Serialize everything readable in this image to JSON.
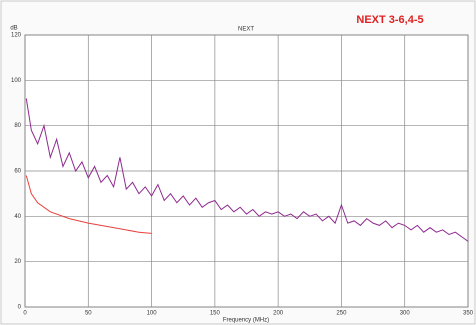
{
  "chart_data": {
    "type": "line",
    "title": "NEXT",
    "annotation": "NEXT 3-6,4-5",
    "ylabel": "dB",
    "xlabel": "Frequency (MHz)",
    "xlim": [
      0,
      350
    ],
    "ylim": [
      0,
      120
    ],
    "xticks": [
      0,
      50,
      100,
      150,
      200,
      250,
      300,
      350
    ],
    "yticks": [
      0,
      20,
      40,
      60,
      80,
      100,
      120
    ],
    "grid": true,
    "series": [
      {
        "color": "#8e2a8e",
        "x": [
          1,
          5,
          10,
          15,
          20,
          25,
          30,
          35,
          40,
          45,
          50,
          55,
          60,
          65,
          70,
          75,
          80,
          85,
          90,
          95,
          100,
          105,
          110,
          115,
          120,
          125,
          130,
          135,
          140,
          145,
          150,
          155,
          160,
          165,
          170,
          175,
          180,
          185,
          190,
          195,
          200,
          205,
          210,
          215,
          220,
          225,
          230,
          235,
          240,
          245,
          250,
          255,
          260,
          265,
          270,
          275,
          280,
          285,
          290,
          295,
          300,
          305,
          310,
          315,
          320,
          325,
          330,
          335,
          340,
          345,
          350
        ],
        "values": [
          92,
          78,
          72,
          80,
          66,
          74,
          62,
          68,
          60,
          64,
          57,
          62,
          55,
          58,
          53,
          66,
          52,
          55,
          50,
          53,
          49,
          54,
          47,
          50,
          46,
          49,
          45,
          48,
          44,
          46,
          47,
          43,
          45,
          42,
          44,
          41,
          43,
          40,
          42,
          41,
          42,
          40,
          41,
          39,
          42,
          40,
          41,
          38,
          40,
          37,
          45,
          37,
          38,
          36,
          39,
          37,
          36,
          38,
          35,
          37,
          36,
          34,
          36,
          33,
          35,
          33,
          34,
          32,
          33,
          31,
          29
        ]
      },
      {
        "color": "#e8403c",
        "x": [
          1,
          5,
          10,
          20,
          35,
          50,
          70,
          90,
          100
        ],
        "values": [
          58,
          50,
          46,
          42,
          39,
          37,
          35,
          33,
          32.5
        ]
      }
    ]
  }
}
